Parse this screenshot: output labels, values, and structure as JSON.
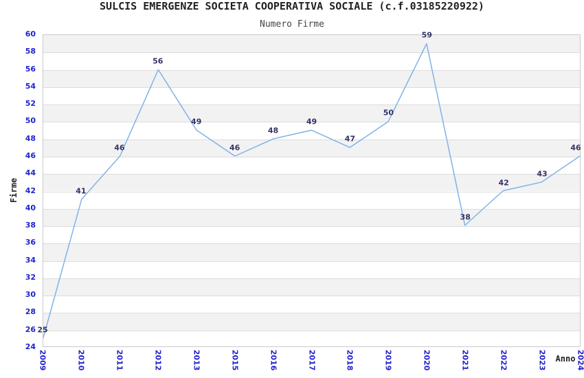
{
  "chart_data": {
    "type": "line",
    "title": "SULCIS EMERGENZE SOCIETA COOPERATIVA SOCIALE (c.f.03185220922)",
    "subtitle": "Numero Firme",
    "xlabel": "Anno",
    "ylabel": "Firme",
    "categories": [
      "2009",
      "2010",
      "2011",
      "2012",
      "2013",
      "2015",
      "2016",
      "2017",
      "2018",
      "2019",
      "2020",
      "2021",
      "2022",
      "2023",
      "2024"
    ],
    "values": [
      25,
      41,
      46,
      56,
      49,
      46,
      48,
      49,
      47,
      50,
      59,
      38,
      42,
      43,
      46
    ],
    "ylim": [
      24,
      60
    ],
    "ytick_step": 2,
    "grid": true,
    "alternating_bands": true,
    "show_point_labels": true,
    "legend": "none",
    "colors": {
      "line": "#7fb2e8",
      "tick_label": "#2222cc",
      "data_label": "#333366",
      "band": "#f2f2f2",
      "grid_line": "#dcdcdc",
      "border": "#c9c9c9",
      "title": "#222222",
      "subtitle": "#444444",
      "axis_title": "#222222"
    }
  }
}
